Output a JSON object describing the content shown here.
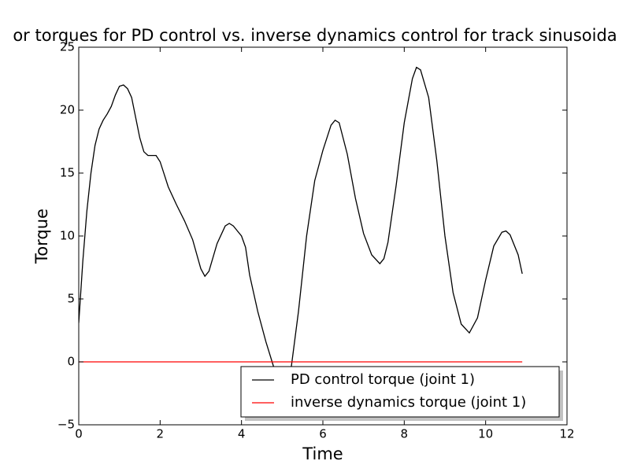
{
  "chart_data": {
    "type": "line",
    "title": "or torques for PD control vs. inverse dynamics control for track sinusoida",
    "x_label": "Time",
    "y_label": "Torque",
    "xlim": [
      0,
      12
    ],
    "ylim": [
      -5,
      25
    ],
    "xticks": [
      0,
      2,
      4,
      6,
      8,
      10,
      12
    ],
    "yticks": [
      {
        "value": -5,
        "label": "−5"
      },
      0,
      5,
      10,
      15,
      20,
      25
    ],
    "grid": false,
    "legend": "lower right",
    "series": [
      {
        "name": "PD control torque (joint 1)",
        "color": "#000000",
        "x": [
          0,
          0.1,
          0.2,
          0.3,
          0.4,
          0.5,
          0.6,
          0.7,
          0.8,
          0.9,
          1.0,
          1.1,
          1.2,
          1.3,
          1.4,
          1.5,
          1.6,
          1.7,
          1.8,
          1.9,
          2.0,
          2.1,
          2.2,
          2.4,
          2.6,
          2.8,
          3.0,
          3.1,
          3.2,
          3.4,
          3.6,
          3.7,
          3.8,
          3.9,
          4.0,
          4.1,
          4.2,
          4.4,
          4.6,
          4.8,
          5.0,
          5.2,
          5.4,
          5.6,
          5.8,
          6.0,
          6.2,
          6.3,
          6.4,
          6.6,
          6.8,
          7.0,
          7.2,
          7.4,
          7.5,
          7.6,
          7.8,
          8.0,
          8.2,
          8.3,
          8.4,
          8.6,
          8.8,
          9.0,
          9.2,
          9.4,
          9.6,
          9.8,
          10.0,
          10.2,
          10.4,
          10.5,
          10.6,
          10.8,
          10.9
        ],
        "values": [
          3.1,
          8,
          12,
          15,
          17.2,
          18.5,
          19.2,
          19.7,
          20.3,
          21.2,
          21.9,
          22,
          21.7,
          21,
          19.4,
          17.8,
          16.7,
          16.4,
          16.4,
          16.4,
          15.9,
          14.9,
          13.9,
          12.5,
          11.2,
          9.7,
          7.4,
          6.8,
          7.2,
          9.4,
          10.8,
          11,
          10.8,
          10.4,
          10,
          9.1,
          6.9,
          4,
          1.6,
          -0.5,
          -2,
          -1,
          4,
          10,
          14.4,
          16.8,
          18.8,
          19.2,
          19,
          16.5,
          13,
          10.2,
          8.5,
          7.8,
          8.2,
          9.5,
          14,
          19,
          22.5,
          23.4,
          23.2,
          21,
          16,
          10,
          5.5,
          3,
          2.3,
          3.5,
          6.5,
          9.2,
          10.3,
          10.4,
          10.1,
          8.5,
          7
        ]
      },
      {
        "name": "inverse dynamics torque (joint 1)",
        "color": "#ff0000",
        "x": [
          0,
          10.9
        ],
        "values": [
          0,
          0
        ]
      }
    ]
  }
}
